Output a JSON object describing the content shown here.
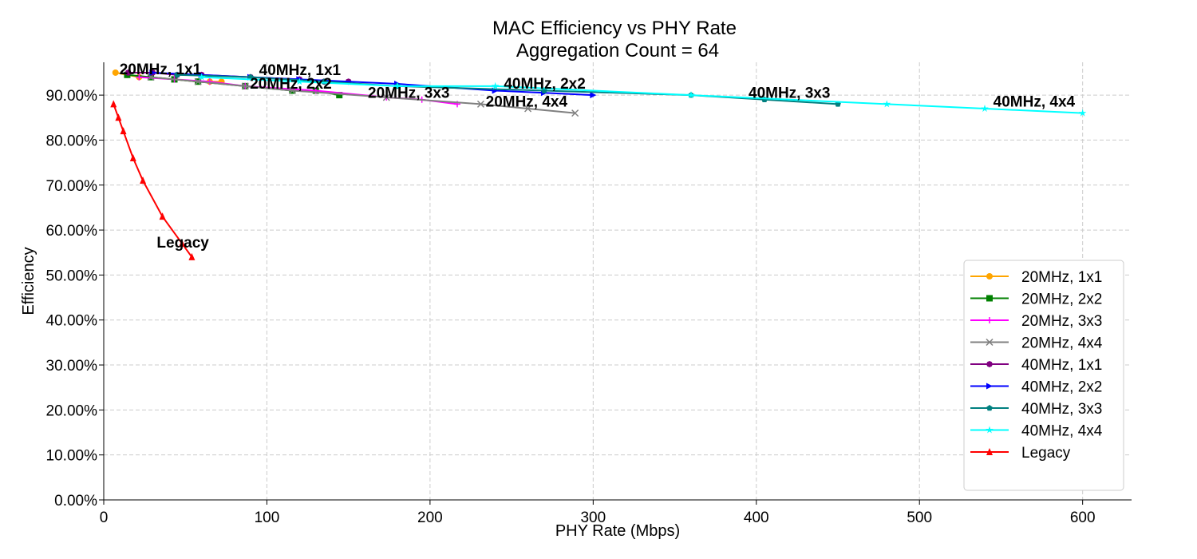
{
  "chart_data": {
    "type": "line",
    "title": "MAC Efficiency vs PHY Rate",
    "subtitle": "Aggregation Count = 64",
    "xlabel": "PHY Rate (Mbps)",
    "ylabel": "Efficiency",
    "xlim": [
      0,
      630
    ],
    "ylim": [
      0,
      97.3
    ],
    "xticks": [
      0,
      100,
      200,
      300,
      400,
      500,
      600
    ],
    "yticks": [
      0,
      10,
      20,
      30,
      40,
      50,
      60,
      70,
      80,
      90
    ],
    "ytick_labels": [
      "0.00%",
      "10.00%",
      "20.00%",
      "30.00%",
      "40.00%",
      "50.00%",
      "60.00%",
      "70.00%",
      "80.00%",
      "90.00%"
    ],
    "grid": true,
    "legend_position": "bottom-right",
    "series": [
      {
        "name": "20MHz, 1x1",
        "color": "#ffa500",
        "marker": "circle",
        "x": [
          7.2,
          14.4,
          21.7,
          28.9,
          43.3,
          57.8,
          65,
          72.2
        ],
        "y": [
          95,
          94.5,
          94,
          94,
          93.5,
          93,
          93,
          93
        ]
      },
      {
        "name": "20MHz, 2x2",
        "color": "#008000",
        "marker": "square",
        "x": [
          14.4,
          28.9,
          43.3,
          57.8,
          86.7,
          115.6,
          130,
          144.4
        ],
        "y": [
          94.5,
          94,
          93.5,
          93,
          92,
          91,
          91,
          90
        ]
      },
      {
        "name": "20MHz, 3x3",
        "color": "#ff00ff",
        "marker": "plus",
        "x": [
          21.7,
          43.3,
          65,
          86.7,
          130,
          173.3,
          195,
          216.7
        ],
        "y": [
          94,
          93.5,
          93,
          92,
          91,
          89.5,
          89,
          88
        ]
      },
      {
        "name": "20MHz, 4x4",
        "color": "#808080",
        "marker": "x",
        "x": [
          28.9,
          57.8,
          86.7,
          115.6,
          173.3,
          231.1,
          260,
          288.9
        ],
        "y": [
          94,
          93,
          92,
          91,
          89.5,
          88,
          87,
          86
        ]
      },
      {
        "name": "40MHz, 1x1",
        "color": "#800080",
        "marker": "octagon",
        "x": [
          15,
          30,
          45,
          60,
          90,
          120,
          135,
          150
        ],
        "y": [
          95,
          95,
          94.5,
          94.5,
          94,
          93.5,
          93,
          93
        ]
      },
      {
        "name": "40MHz, 2x2",
        "color": "#0000ff",
        "marker": "triangle-right",
        "x": [
          30,
          60,
          90,
          120,
          180,
          240,
          270,
          300
        ],
        "y": [
          95,
          94.5,
          94,
          93.5,
          92.5,
          91,
          90.5,
          90
        ]
      },
      {
        "name": "40MHz, 3x3",
        "color": "#008080",
        "marker": "pentagon",
        "x": [
          45,
          90,
          135,
          180,
          270,
          360,
          405,
          450
        ],
        "y": [
          94.5,
          94,
          93,
          92,
          91,
          90,
          89,
          88
        ]
      },
      {
        "name": "40MHz, 4x4",
        "color": "#00ffff",
        "marker": "star",
        "x": [
          60,
          120,
          180,
          240,
          360,
          480,
          540,
          600
        ],
        "y": [
          94,
          93,
          92,
          92,
          90,
          88,
          87,
          86
        ]
      },
      {
        "name": "Legacy",
        "color": "#ff0000",
        "marker": "triangle-up",
        "x": [
          6,
          9,
          12,
          18,
          24,
          36,
          48,
          54
        ],
        "y": [
          88,
          85,
          82,
          76,
          71,
          63,
          57,
          54
        ]
      }
    ]
  }
}
